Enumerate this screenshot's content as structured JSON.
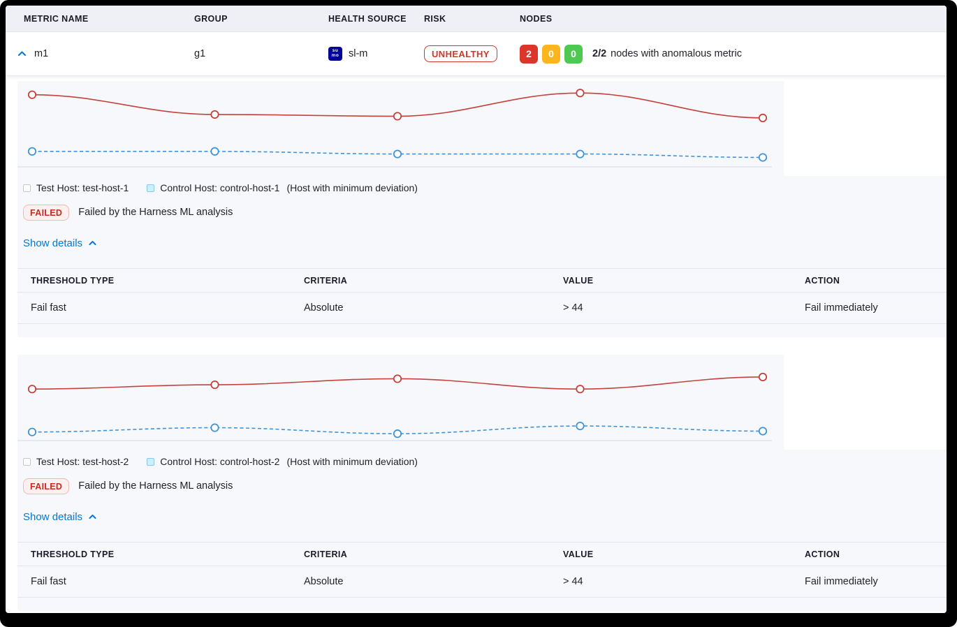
{
  "colors": {
    "accent_blue": "#0278d5",
    "risk_red": "#d4352b",
    "node_red": "#dc352a",
    "node_yellow": "#fcb51d",
    "node_green": "#4dc952",
    "failed_red": "#c9281d",
    "test_line_red": "#c5413b",
    "control_line_blue": "#3f93d9",
    "card_background": "#f7f8fb",
    "header_background": "#eef0f5",
    "sumo_navy": "#000099"
  },
  "table": {
    "columns": {
      "metric_name": "METRIC NAME",
      "group": "GROUP",
      "health_source": "HEALTH SOURCE",
      "risk": "RISK",
      "nodes": "NODES"
    },
    "row": {
      "metric_name": "m1",
      "group": "g1",
      "health_source": "sl-m",
      "health_source_icon": "sumologic",
      "sumo_line1": "su",
      "sumo_line2": "mo",
      "risk": "UNHEALTHY",
      "nodes": {
        "anomalous": "2",
        "warning": "0",
        "healthy": "0",
        "ratio": "2/2",
        "summary": "nodes with anomalous metric"
      }
    }
  },
  "sections": [
    {
      "legend": {
        "test_label": "Test Host: test-host-1",
        "control_label": "Control Host: control-host-1",
        "note": "(Host with minimum deviation)"
      },
      "status": {
        "badge": "FAILED",
        "message": "Failed by the Harness ML analysis"
      },
      "show_details": "Show details",
      "details_table": {
        "headers": {
          "threshold_type": "THRESHOLD TYPE",
          "criteria": "CRITERIA",
          "value": "VALUE",
          "action": "ACTION"
        },
        "row": {
          "threshold_type": "Fail fast",
          "criteria": "Absolute",
          "value": "> 44",
          "action": "Fail immediately"
        }
      }
    },
    {
      "legend": {
        "test_label": "Test Host: test-host-2",
        "control_label": "Control Host: control-host-2",
        "note": "(Host with minimum deviation)"
      },
      "status": {
        "badge": "FAILED",
        "message": "Failed by the Harness ML analysis"
      },
      "show_details": "Show details",
      "details_table": {
        "headers": {
          "threshold_type": "THRESHOLD TYPE",
          "criteria": "CRITERIA",
          "value": "VALUE",
          "action": "ACTION"
        },
        "row": {
          "threshold_type": "Fail fast",
          "criteria": "Absolute",
          "value": "> 44",
          "action": "Fail immediately"
        }
      }
    }
  ],
  "chart_data": [
    {
      "type": "line",
      "x": [
        1,
        2,
        3,
        4,
        5
      ],
      "series": [
        {
          "name": "Test Host: test-host-1",
          "color": "#c5413b",
          "style": "solid",
          "values": [
            84,
            61,
            59,
            86,
            57
          ]
        },
        {
          "name": "Control Host: control-host-1",
          "color": "#3f93d9",
          "style": "dashed",
          "values": [
            18,
            18,
            15,
            15,
            11
          ]
        }
      ],
      "title": "",
      "xlabel": "",
      "ylabel": "",
      "ylim": [
        0,
        100
      ],
      "y_unit": "percent_of_plot_height",
      "grid": false,
      "axes_labeled": false,
      "legend_position": "bottom"
    },
    {
      "type": "line",
      "x": [
        1,
        2,
        3,
        4,
        5
      ],
      "series": [
        {
          "name": "Test Host: test-host-2",
          "color": "#c5413b",
          "style": "solid",
          "values": [
            60,
            65,
            72,
            60,
            74
          ]
        },
        {
          "name": "Control Host: control-host-2",
          "color": "#3f93d9",
          "style": "dashed",
          "values": [
            10,
            15,
            8,
            17,
            11
          ]
        }
      ],
      "title": "",
      "xlabel": "",
      "ylabel": "",
      "ylim": [
        0,
        100
      ],
      "y_unit": "percent_of_plot_height",
      "grid": false,
      "axes_labeled": false,
      "legend_position": "bottom"
    }
  ]
}
